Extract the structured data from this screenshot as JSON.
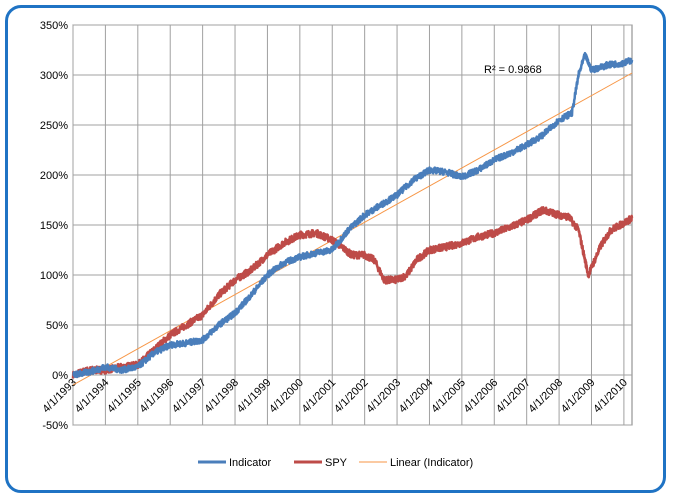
{
  "chart_data": {
    "type": "line",
    "title": "",
    "xlabel": "",
    "ylabel": "",
    "ylim": [
      -50,
      350
    ],
    "yticks": [
      -50,
      0,
      50,
      100,
      150,
      200,
      250,
      300,
      350
    ],
    "ytick_labels": [
      "-50%",
      "0%",
      "50%",
      "100%",
      "150%",
      "200%",
      "250%",
      "300%",
      "350%"
    ],
    "xlim": [
      1993.0,
      2010.25
    ],
    "xtick_labels": [
      "4/1/1993",
      "4/1/1994",
      "4/1/1995",
      "4/1/1996",
      "4/1/1997",
      "4/1/1998",
      "4/1/1999",
      "4/1/2000",
      "4/1/2001",
      "4/1/2002",
      "4/1/2003",
      "4/1/2004",
      "4/1/2005",
      "4/1/2006",
      "4/1/2007",
      "4/1/2008",
      "4/1/2009",
      "4/1/2010"
    ],
    "grid": true,
    "legend_position": "bottom",
    "annotation": "R² = 0.9868",
    "colors": {
      "indicator": "#4a7ebb",
      "spy": "#be4b48",
      "linear": "#f79646",
      "frame": "#1f73c4",
      "grid": "#a0a0a0"
    },
    "series": [
      {
        "name": "Indicator",
        "x": [
          1993.0,
          1993.5,
          1994.0,
          1994.5,
          1995.0,
          1995.5,
          1996.0,
          1996.5,
          1997.0,
          1997.5,
          1998.0,
          1998.5,
          1999.0,
          1999.5,
          2000.0,
          2000.5,
          2001.0,
          2001.5,
          2002.0,
          2002.5,
          2003.0,
          2003.5,
          2004.0,
          2004.5,
          2005.0,
          2005.5,
          2006.0,
          2006.5,
          2007.0,
          2007.5,
          2008.0,
          2008.4,
          2008.6,
          2008.8,
          2009.0,
          2009.5,
          2010.0,
          2010.25
        ],
        "values": [
          0,
          3,
          8,
          5,
          8,
          22,
          30,
          32,
          35,
          50,
          62,
          80,
          100,
          112,
          118,
          122,
          125,
          145,
          160,
          170,
          180,
          195,
          205,
          203,
          198,
          205,
          215,
          222,
          230,
          240,
          255,
          262,
          300,
          320,
          305,
          310,
          312,
          315
        ]
      },
      {
        "name": "SPY",
        "x": [
          1993.0,
          1993.5,
          1994.0,
          1994.5,
          1995.0,
          1995.5,
          1996.0,
          1996.5,
          1997.0,
          1997.5,
          1998.0,
          1998.5,
          1999.0,
          1999.5,
          2000.0,
          2000.5,
          2001.0,
          2001.3,
          2001.6,
          2002.0,
          2002.3,
          2002.6,
          2003.0,
          2003.3,
          2003.6,
          2004.0,
          2004.5,
          2005.0,
          2005.5,
          2006.0,
          2006.5,
          2007.0,
          2007.5,
          2008.0,
          2008.3,
          2008.6,
          2008.9,
          2009.1,
          2009.3,
          2009.6,
          2010.0,
          2010.25
        ],
        "values": [
          0,
          5,
          5,
          8,
          10,
          25,
          40,
          50,
          60,
          80,
          95,
          105,
          120,
          132,
          140,
          142,
          135,
          128,
          120,
          120,
          115,
          95,
          95,
          100,
          115,
          125,
          128,
          132,
          138,
          142,
          148,
          155,
          165,
          160,
          158,
          145,
          100,
          115,
          130,
          145,
          152,
          157
        ]
      },
      {
        "name": "Linear (Indicator)",
        "x": [
          1993.0,
          2010.25
        ],
        "values": [
          -10,
          302
        ]
      }
    ]
  }
}
